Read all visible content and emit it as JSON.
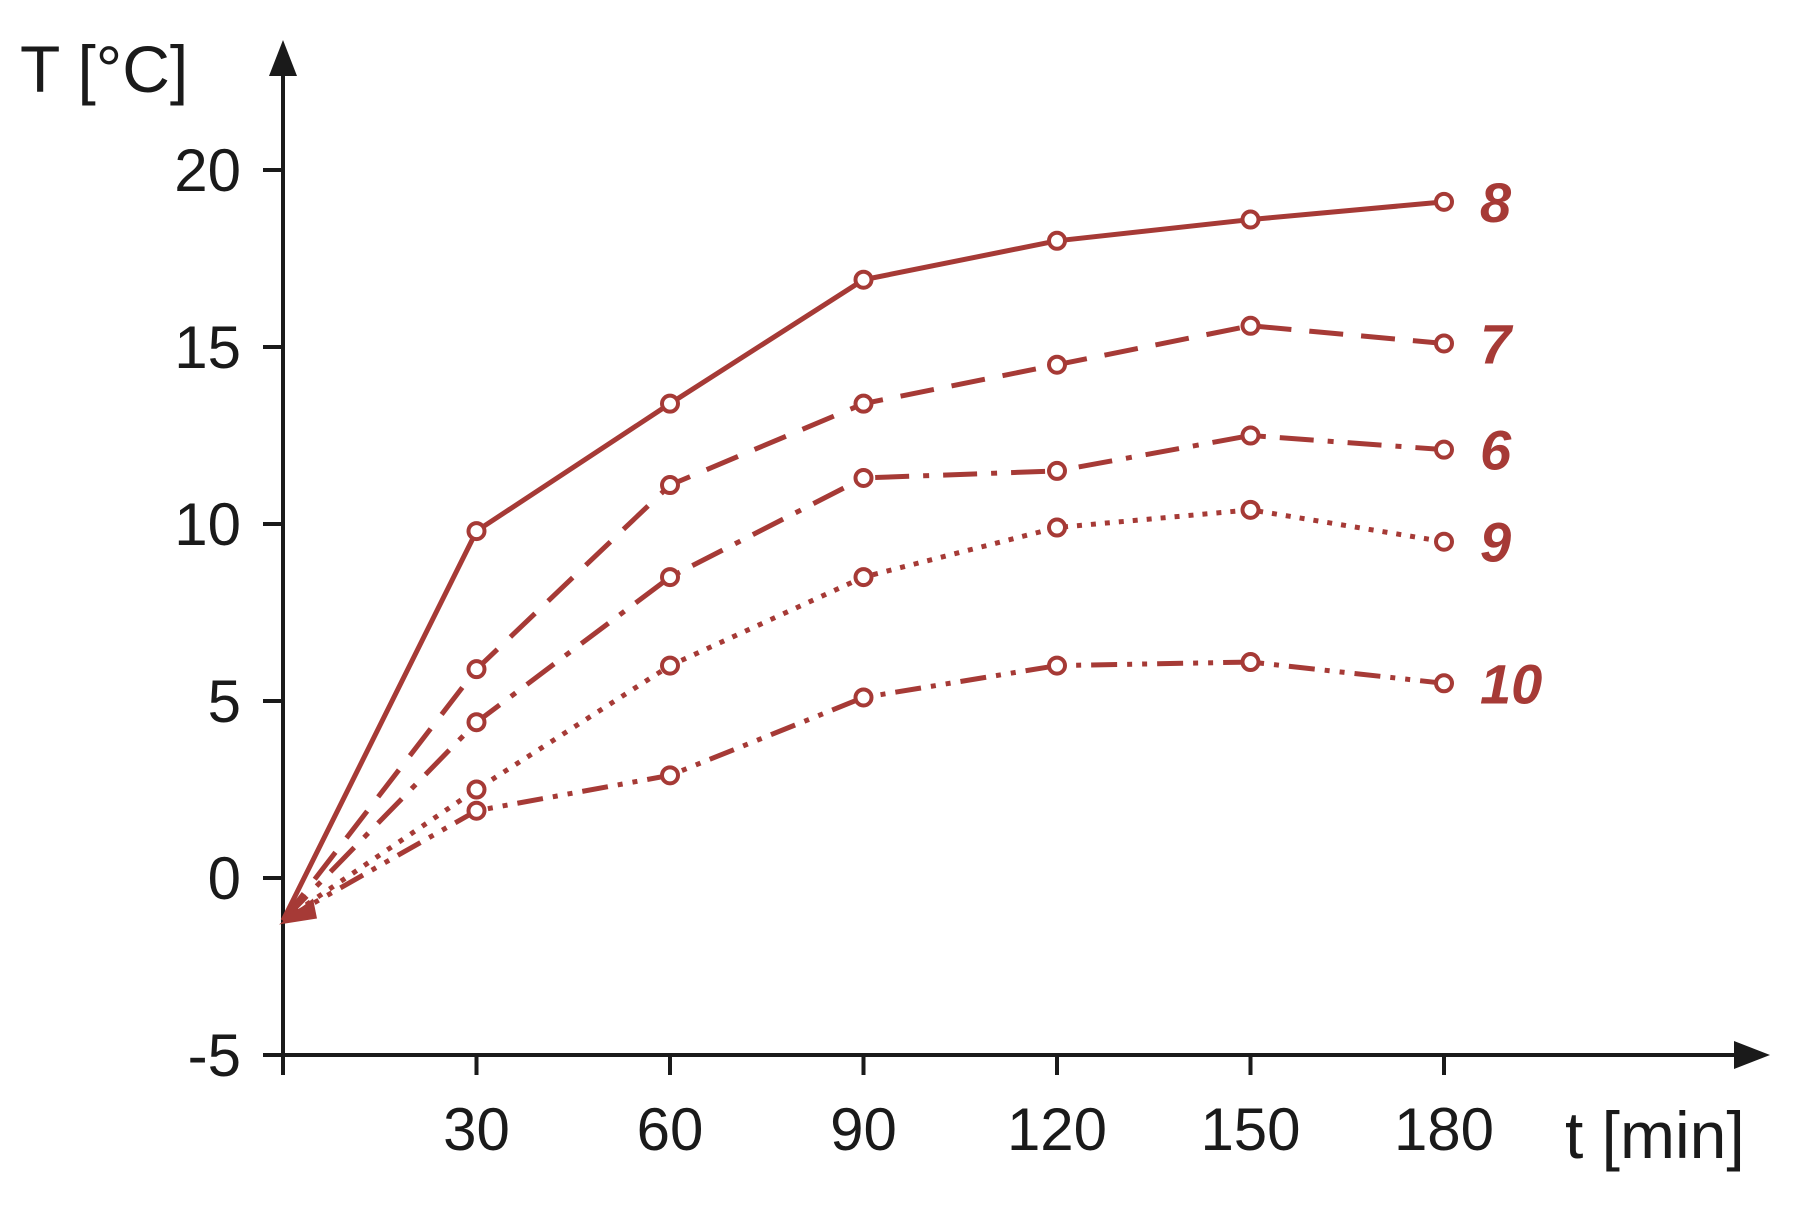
{
  "chart_data": {
    "type": "line",
    "xlabel": "t [min]",
    "ylabel": "T [°C]",
    "xlim": [
      0,
      200
    ],
    "ylim": [
      -5,
      22
    ],
    "x_ticks": [
      30,
      60,
      90,
      120,
      150,
      180
    ],
    "y_ticks": [
      -5,
      0,
      5,
      10,
      15,
      20
    ],
    "x_tick_labels": [
      "30",
      "60",
      "90",
      "120",
      "150",
      "180"
    ],
    "y_tick_labels": [
      "-5",
      "0",
      "5",
      "10",
      "15",
      "20"
    ],
    "grid": false,
    "legend": "inline labels at right end of each series",
    "start_point": {
      "x": 0,
      "y": -1.2
    },
    "x": [
      30,
      60,
      90,
      120,
      150,
      180
    ],
    "series": [
      {
        "name": "8",
        "values": [
          9.8,
          13.4,
          16.9,
          18.0,
          18.6,
          19.1
        ],
        "style": "solid"
      },
      {
        "name": "7",
        "values": [
          5.9,
          11.1,
          13.4,
          14.5,
          15.6,
          15.1
        ],
        "style": "dashed"
      },
      {
        "name": "6",
        "values": [
          4.4,
          8.5,
          11.3,
          11.5,
          12.5,
          12.1
        ],
        "style": "dash-dot"
      },
      {
        "name": "9",
        "values": [
          2.5,
          6.0,
          8.5,
          9.9,
          10.4,
          9.5
        ],
        "style": "dotted"
      },
      {
        "name": "10",
        "values": [
          1.9,
          2.9,
          5.1,
          6.0,
          6.1,
          5.5
        ],
        "style": "dash-dot-dot"
      }
    ],
    "color": "#a63a36"
  }
}
